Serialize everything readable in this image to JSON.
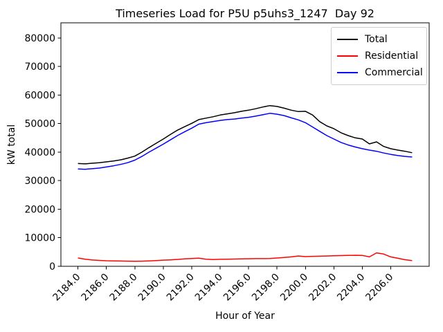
{
  "chart_data": {
    "type": "line",
    "title": "Timeseries Load for P5U p5uhs3_1247  Day 92",
    "xlabel": "Hour of Year",
    "ylabel": "kW total",
    "grid": false,
    "legend_position": "upper right",
    "xlim": [
      2182.8,
      2208.7
    ],
    "ylim": [
      0,
      85300
    ],
    "xticks": [
      2184,
      2186,
      2188,
      2190,
      2192,
      2194,
      2196,
      2198,
      2200,
      2202,
      2204,
      2206
    ],
    "xtick_labels": [
      "2184.0",
      "2186.0",
      "2188.0",
      "2190.0",
      "2192.0",
      "2194.0",
      "2196.0",
      "2198.0",
      "2200.0",
      "2202.0",
      "2204.0",
      "2206.0"
    ],
    "yticks": [
      0,
      10000,
      20000,
      30000,
      40000,
      50000,
      60000,
      70000,
      80000
    ],
    "ytick_labels": [
      "0",
      "10000",
      "20000",
      "30000",
      "40000",
      "50000",
      "60000",
      "70000",
      "80000"
    ],
    "x": [
      2184,
      2184.5,
      2185,
      2185.5,
      2186,
      2186.5,
      2187,
      2187.5,
      2188,
      2188.5,
      2189,
      2189.5,
      2190,
      2190.5,
      2191,
      2191.5,
      2192,
      2192.5,
      2193,
      2193.5,
      2194,
      2194.5,
      2195,
      2195.5,
      2196,
      2196.5,
      2197,
      2197.5,
      2198,
      2198.5,
      2199,
      2199.5,
      2200,
      2200.5,
      2201,
      2201.5,
      2202,
      2202.5,
      2203,
      2203.5,
      2204,
      2204.5,
      2205,
      2205.5,
      2206,
      2206.5,
      2207,
      2207.5
    ],
    "series": [
      {
        "name": "Total",
        "color": "#000000",
        "values": [
          36000,
          35900,
          36100,
          36300,
          36600,
          36900,
          37300,
          37900,
          38600,
          40000,
          41600,
          43100,
          44600,
          46200,
          47700,
          48900,
          50100,
          51400,
          51900,
          52400,
          53000,
          53400,
          53800,
          54300,
          54700,
          55200,
          55800,
          56300,
          56000,
          55400,
          54700,
          54200,
          54300,
          53000,
          50700,
          49200,
          48200,
          46800,
          45800,
          45000,
          44600,
          42900,
          43600,
          42000,
          41200,
          40700,
          40300,
          39800
        ]
      },
      {
        "name": "Residential",
        "color": "#ff0000",
        "values": [
          2900,
          2500,
          2200,
          2050,
          1950,
          1900,
          1850,
          1800,
          1750,
          1800,
          1900,
          2000,
          2150,
          2250,
          2400,
          2600,
          2750,
          2850,
          2500,
          2350,
          2450,
          2500,
          2550,
          2600,
          2650,
          2700,
          2700,
          2750,
          2900,
          3100,
          3300,
          3600,
          3400,
          3500,
          3550,
          3600,
          3700,
          3750,
          3800,
          3850,
          3800,
          3300,
          4700,
          4300,
          3300,
          2800,
          2300,
          2000
        ]
      },
      {
        "name": "Commercial",
        "color": "#0000ff",
        "values": [
          34100,
          34000,
          34200,
          34400,
          34800,
          35200,
          35700,
          36300,
          37200,
          38500,
          40000,
          41400,
          42800,
          44300,
          45800,
          47100,
          48400,
          49800,
          50300,
          50700,
          51100,
          51400,
          51600,
          51900,
          52200,
          52600,
          53100,
          53600,
          53300,
          52800,
          52000,
          51300,
          50300,
          48800,
          47300,
          45800,
          44600,
          43400,
          42500,
          41800,
          41200,
          40700,
          40300,
          39700,
          39200,
          38800,
          38500,
          38300
        ]
      }
    ]
  }
}
